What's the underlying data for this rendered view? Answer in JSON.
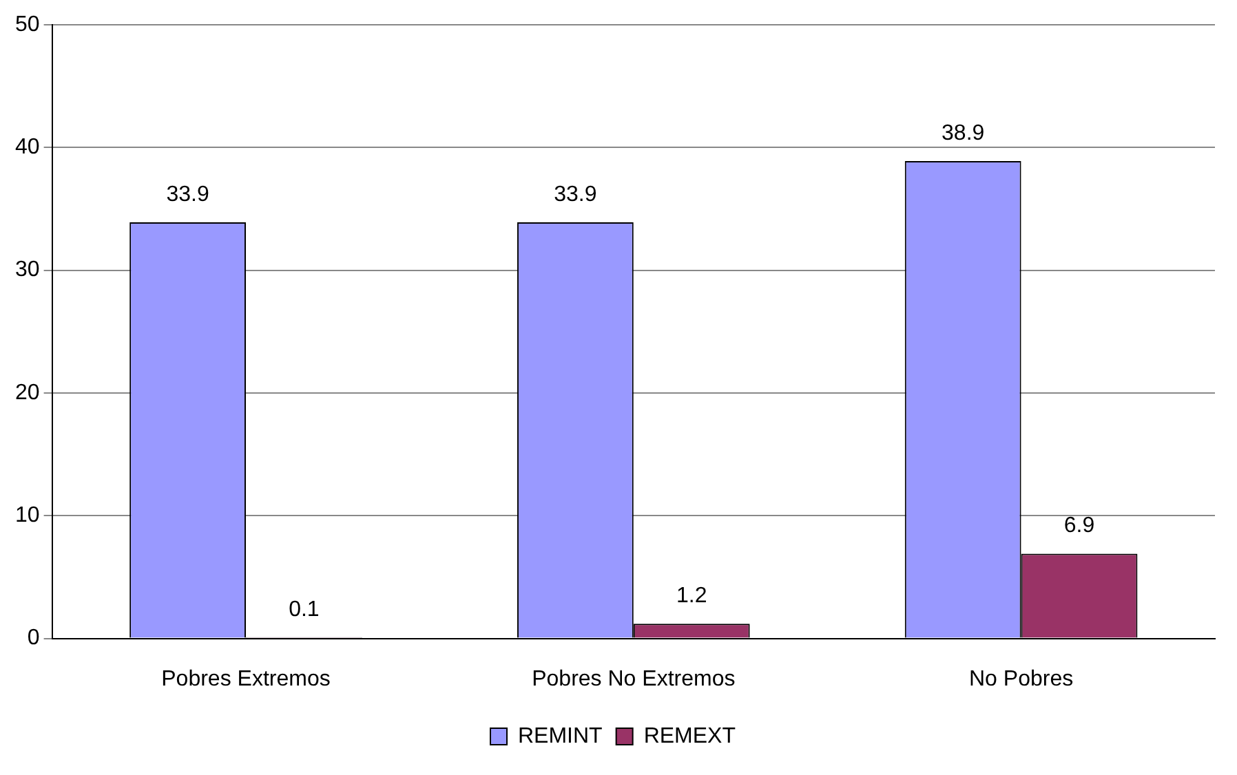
{
  "chart_data": {
    "type": "bar",
    "categories": [
      "Pobres Extremos",
      "Pobres No Extremos",
      "No Pobres"
    ],
    "series": [
      {
        "name": "REMINT",
        "color": "#9999ff",
        "values": [
          33.9,
          33.9,
          38.9
        ]
      },
      {
        "name": "REMEXT",
        "color": "#993366",
        "values": [
          0.1,
          1.2,
          6.9
        ]
      }
    ],
    "ylim": [
      0,
      50
    ],
    "yticks": [
      0,
      10,
      20,
      30,
      40,
      50
    ],
    "grid": "y",
    "legend": "bottom",
    "data_labels": true
  }
}
